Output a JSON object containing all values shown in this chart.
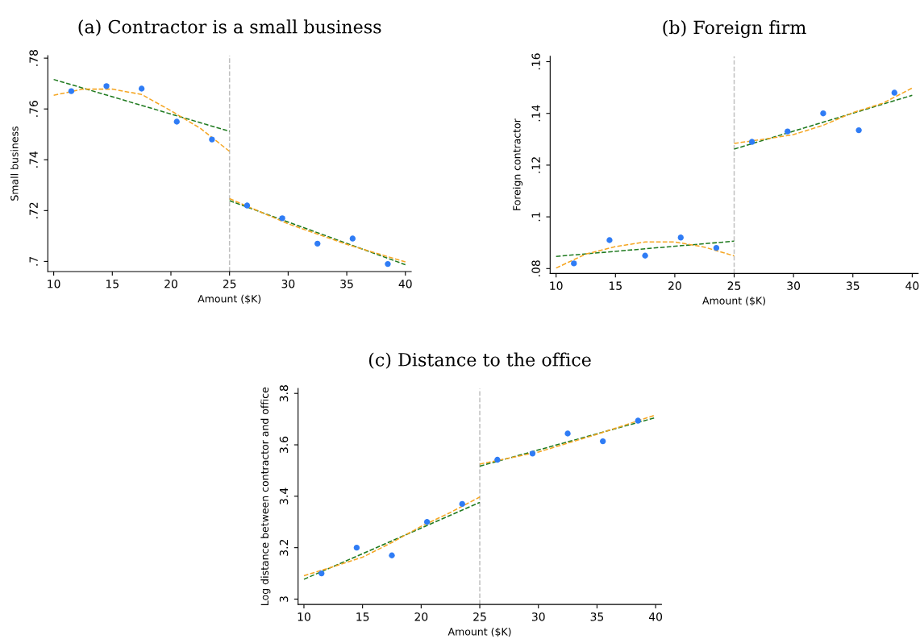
{
  "chart_data": [
    {
      "type": "scatter",
      "title": "(a) Contractor is a small business",
      "xlabel": "Amount ($K)",
      "ylabel": "Small business",
      "xlim": [
        9.5,
        40.5
      ],
      "xticks": [
        10,
        15,
        20,
        25,
        30,
        35,
        40
      ],
      "ylim": [
        0.696,
        0.781
      ],
      "yticks": [
        {
          "value": 0.7,
          "label": ".7"
        },
        {
          "value": 0.72,
          "label": ".72"
        },
        {
          "value": 0.74,
          "label": ".74"
        },
        {
          "value": 0.76,
          "label": ".76"
        },
        {
          "value": 0.78,
          "label": ".78"
        }
      ],
      "ref_lines": [
        {
          "axis": "x",
          "value": 25,
          "color": "#c0c0c0",
          "line_style": "dashed"
        }
      ],
      "series": [
        {
          "marker": "circle",
          "color": "#2f7cf5",
          "x": [
            11.5,
            14.5,
            17.5,
            20.5,
            23.5,
            26.5,
            29.5,
            32.5,
            35.5,
            38.5
          ],
          "values": [
            0.767,
            0.769,
            0.768,
            0.755,
            0.748,
            0.722,
            0.717,
            0.707,
            0.709,
            0.699
          ]
        },
        {
          "type": "line",
          "line_style": "dashed",
          "color": "#1f7a1f",
          "x": [
            10,
            25
          ],
          "values": [
            0.7716,
            0.7512
          ]
        },
        {
          "type": "line",
          "line_style": "dashed",
          "color": "#1f7a1f",
          "x": [
            25,
            40
          ],
          "values": [
            0.7239,
            0.6987
          ]
        },
        {
          "type": "line",
          "line_style": "dashed",
          "color": "#f5a623",
          "x": [
            10,
            12.5,
            15,
            17.5,
            20,
            22.5,
            25
          ],
          "values": [
            0.7654,
            0.7678,
            0.7678,
            0.7657,
            0.7593,
            0.7524,
            0.7433
          ]
        },
        {
          "type": "line",
          "line_style": "dashed",
          "color": "#f5a623",
          "x": [
            25,
            30,
            35,
            40
          ],
          "values": [
            0.7247,
            0.7148,
            0.7067,
            0.6998
          ]
        }
      ]
    },
    {
      "type": "scatter",
      "title": "(b) Foreign firm",
      "xlabel": "Amount ($K)",
      "ylabel": "Foreign contractor",
      "xlim": [
        9.5,
        40.5
      ],
      "xticks": [
        10,
        15,
        20,
        25,
        30,
        35,
        40
      ],
      "ylim": [
        0.0781,
        0.1621
      ],
      "yticks": [
        {
          "value": 0.08,
          "label": ".08"
        },
        {
          "value": 0.1,
          "label": ".1"
        },
        {
          "value": 0.12,
          "label": ".12"
        },
        {
          "value": 0.14,
          "label": ".14"
        },
        {
          "value": 0.16,
          "label": ".16"
        }
      ],
      "ref_lines": [
        {
          "axis": "x",
          "value": 25,
          "color": "#c0c0c0",
          "line_style": "dashed"
        }
      ],
      "series": [
        {
          "marker": "circle",
          "color": "#2f7cf5",
          "x": [
            11.5,
            14.5,
            17.5,
            20.5,
            23.5,
            26.5,
            29.5,
            32.5,
            35.5,
            38.5
          ],
          "values": [
            0.082,
            0.091,
            0.085,
            0.092,
            0.088,
            0.129,
            0.133,
            0.14,
            0.1335,
            0.148
          ]
        },
        {
          "type": "line",
          "line_style": "dashed",
          "color": "#1f7a1f",
          "x": [
            10,
            25
          ],
          "values": [
            0.0847,
            0.0906
          ]
        },
        {
          "type": "line",
          "line_style": "dashed",
          "color": "#1f7a1f",
          "x": [
            25,
            40
          ],
          "values": [
            0.1262,
            0.147
          ]
        },
        {
          "type": "line",
          "line_style": "dashed",
          "color": "#f5a623",
          "x": [
            10,
            12.5,
            15,
            17.5,
            20,
            22.5,
            25
          ],
          "values": [
            0.0802,
            0.0856,
            0.0885,
            0.0903,
            0.0903,
            0.0883,
            0.0849
          ]
        },
        {
          "type": "line",
          "line_style": "dashed",
          "color": "#f5a623",
          "x": [
            25,
            27.5,
            30,
            32.5,
            35,
            37.5,
            40
          ],
          "values": [
            0.1284,
            0.13,
            0.1318,
            0.1354,
            0.1403,
            0.1439,
            0.1498
          ]
        }
      ]
    },
    {
      "type": "scatter",
      "title": "(c) Distance to the office",
      "xlabel": "Amount ($K)",
      "ylabel": "Log distance between contractor and office",
      "xlim": [
        9.5,
        40.5
      ],
      "xticks": [
        10,
        15,
        20,
        25,
        30,
        35,
        40
      ],
      "ylim": [
        2.979,
        3.819
      ],
      "yticks": [
        3,
        3.2,
        3.4,
        3.6,
        3.8
      ],
      "ref_lines": [
        {
          "axis": "x",
          "value": 25,
          "color": "#c0c0c0",
          "line_style": "dashed"
        }
      ],
      "series": [
        {
          "marker": "circle",
          "color": "#2f7cf5",
          "x": [
            11.5,
            14.5,
            17.5,
            20.5,
            23.5,
            26.5,
            29.5,
            32.5,
            35.5,
            38.5
          ],
          "values": [
            3.1,
            3.2,
            3.17,
            3.3,
            3.37,
            3.542,
            3.566,
            3.644,
            3.614,
            3.694
          ]
        },
        {
          "type": "line",
          "line_style": "dashed",
          "color": "#1f7a1f",
          "x": [
            10,
            25
          ],
          "values": [
            3.077,
            3.376
          ]
        },
        {
          "type": "line",
          "line_style": "dashed",
          "color": "#1f7a1f",
          "x": [
            25,
            40
          ],
          "values": [
            3.517,
            3.706
          ]
        },
        {
          "type": "line",
          "line_style": "dashed",
          "color": "#f5a623",
          "x": [
            10,
            12.5,
            15,
            17.5,
            20,
            22.5,
            25
          ],
          "values": [
            3.091,
            3.126,
            3.163,
            3.22,
            3.283,
            3.337,
            3.397
          ]
        },
        {
          "type": "line",
          "line_style": "dashed",
          "color": "#f5a623",
          "x": [
            25,
            30,
            35,
            40
          ],
          "values": [
            3.525,
            3.572,
            3.641,
            3.716
          ]
        }
      ]
    }
  ]
}
